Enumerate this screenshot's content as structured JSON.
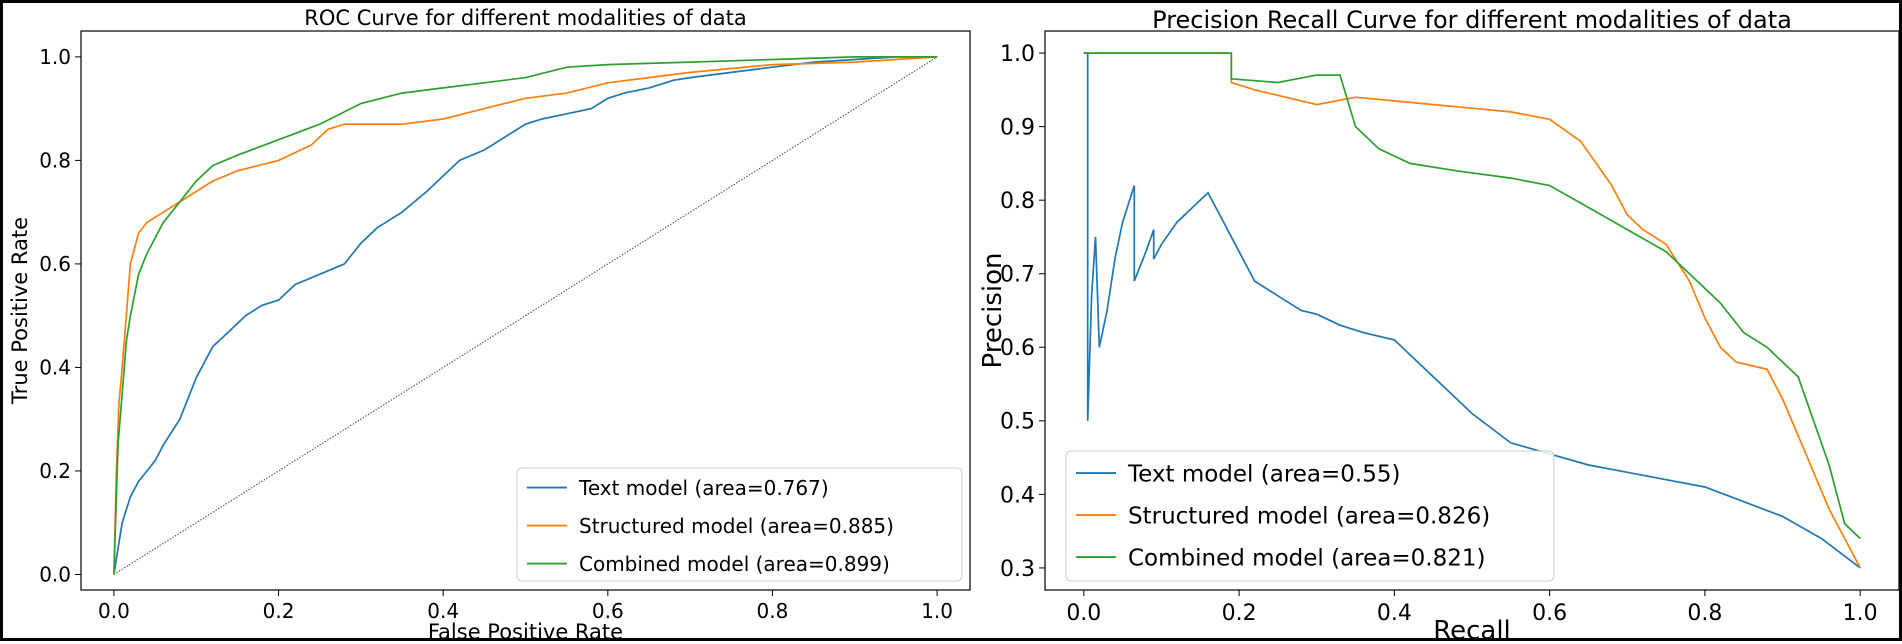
{
  "colors": {
    "text": "#1f77b4",
    "structured": "#ff7f0e",
    "combined": "#2ca02c",
    "diagonal": "#444444"
  },
  "chart_data": [
    {
      "type": "line",
      "title": "ROC Curve for different modalities of data",
      "xlabel": "False Positive Rate",
      "ylabel": "True Positive Rate",
      "xlim": [
        -0.04,
        1.04
      ],
      "ylim": [
        -0.03,
        1.05
      ],
      "xticks": [
        0.0,
        0.2,
        0.4,
        0.6,
        0.8,
        1.0
      ],
      "xtick_labels": [
        "0.0",
        "0.2",
        "0.4",
        "0.6",
        "0.8",
        "1.0"
      ],
      "yticks": [
        0.0,
        0.2,
        0.4,
        0.6,
        0.8,
        1.0
      ],
      "ytick_labels": [
        "0.0",
        "0.2",
        "0.4",
        "0.6",
        "0.8",
        "1.0"
      ],
      "grid": false,
      "legend_position": "lower-right",
      "reference_line": {
        "x": [
          0,
          1
        ],
        "y": [
          0,
          1
        ],
        "style": "dotted"
      },
      "series": [
        {
          "name": "Text model (area=0.767)",
          "color_key": "text",
          "x": [
            0.0,
            0.005,
            0.01,
            0.02,
            0.03,
            0.04,
            0.05,
            0.06,
            0.08,
            0.1,
            0.12,
            0.14,
            0.16,
            0.18,
            0.2,
            0.22,
            0.25,
            0.28,
            0.3,
            0.32,
            0.35,
            0.38,
            0.4,
            0.42,
            0.45,
            0.48,
            0.5,
            0.52,
            0.55,
            0.58,
            0.6,
            0.62,
            0.65,
            0.68,
            0.7,
            0.75,
            0.8,
            0.85,
            0.9,
            0.95,
            1.0
          ],
          "y": [
            0.0,
            0.05,
            0.1,
            0.15,
            0.18,
            0.2,
            0.22,
            0.25,
            0.3,
            0.38,
            0.44,
            0.47,
            0.5,
            0.52,
            0.53,
            0.56,
            0.58,
            0.6,
            0.64,
            0.67,
            0.7,
            0.74,
            0.77,
            0.8,
            0.82,
            0.85,
            0.87,
            0.88,
            0.89,
            0.9,
            0.92,
            0.93,
            0.94,
            0.955,
            0.96,
            0.97,
            0.98,
            0.99,
            0.995,
            1.0,
            1.0
          ]
        },
        {
          "name": "Structured model (area=0.885)",
          "color_key": "structured",
          "x": [
            0.0,
            0.003,
            0.006,
            0.01,
            0.015,
            0.02,
            0.025,
            0.03,
            0.04,
            0.05,
            0.06,
            0.08,
            0.1,
            0.12,
            0.15,
            0.2,
            0.24,
            0.26,
            0.28,
            0.3,
            0.35,
            0.4,
            0.45,
            0.5,
            0.55,
            0.6,
            0.65,
            0.7,
            0.8,
            0.9,
            0.95,
            1.0
          ],
          "y": [
            0.0,
            0.2,
            0.33,
            0.4,
            0.5,
            0.6,
            0.63,
            0.66,
            0.68,
            0.69,
            0.7,
            0.72,
            0.74,
            0.76,
            0.78,
            0.8,
            0.83,
            0.86,
            0.87,
            0.87,
            0.87,
            0.88,
            0.9,
            0.92,
            0.93,
            0.95,
            0.96,
            0.97,
            0.985,
            0.99,
            0.995,
            1.0
          ]
        },
        {
          "name": "Combined model (area=0.899)",
          "color_key": "combined",
          "x": [
            0.0,
            0.005,
            0.01,
            0.015,
            0.02,
            0.03,
            0.04,
            0.05,
            0.06,
            0.08,
            0.1,
            0.12,
            0.15,
            0.2,
            0.25,
            0.3,
            0.35,
            0.4,
            0.45,
            0.5,
            0.55,
            0.6,
            0.7,
            0.8,
            0.9,
            1.0
          ],
          "y": [
            0.0,
            0.25,
            0.35,
            0.45,
            0.5,
            0.58,
            0.62,
            0.65,
            0.68,
            0.72,
            0.76,
            0.79,
            0.81,
            0.84,
            0.87,
            0.91,
            0.93,
            0.94,
            0.95,
            0.96,
            0.98,
            0.985,
            0.99,
            0.995,
            1.0,
            1.0
          ]
        }
      ]
    },
    {
      "type": "line",
      "title": "Precision Recall Curve for different modalities of data",
      "xlabel": "Recall",
      "ylabel": "Precision",
      "xlim": [
        -0.05,
        1.05
      ],
      "ylim": [
        0.27,
        1.03
      ],
      "xticks": [
        0.0,
        0.2,
        0.4,
        0.6,
        0.8,
        1.0
      ],
      "xtick_labels": [
        "0.0",
        "0.2",
        "0.4",
        "0.6",
        "0.8",
        "1.0"
      ],
      "yticks": [
        0.3,
        0.4,
        0.5,
        0.6,
        0.7,
        0.8,
        0.9,
        1.0
      ],
      "ytick_labels": [
        "0.3",
        "0.4",
        "0.5",
        "0.6",
        "0.7",
        "0.8",
        "0.9",
        "1.0"
      ],
      "grid": false,
      "legend_position": "lower-left",
      "series": [
        {
          "name": "Text model (area=0.55)",
          "color_key": "text",
          "x": [
            0.0,
            0.005,
            0.005,
            0.01,
            0.015,
            0.02,
            0.03,
            0.04,
            0.05,
            0.065,
            0.065,
            0.08,
            0.09,
            0.09,
            0.1,
            0.12,
            0.14,
            0.16,
            0.17,
            0.18,
            0.2,
            0.22,
            0.25,
            0.28,
            0.3,
            0.33,
            0.36,
            0.4,
            0.42,
            0.45,
            0.48,
            0.5,
            0.55,
            0.6,
            0.65,
            0.7,
            0.75,
            0.8,
            0.85,
            0.9,
            0.95,
            1.0
          ],
          "y": [
            1.0,
            1.0,
            0.5,
            0.67,
            0.75,
            0.6,
            0.65,
            0.72,
            0.77,
            0.82,
            0.69,
            0.73,
            0.76,
            0.72,
            0.74,
            0.77,
            0.79,
            0.81,
            0.79,
            0.77,
            0.73,
            0.69,
            0.67,
            0.65,
            0.645,
            0.63,
            0.62,
            0.61,
            0.59,
            0.56,
            0.53,
            0.51,
            0.47,
            0.455,
            0.44,
            0.43,
            0.42,
            0.41,
            0.39,
            0.37,
            0.34,
            0.3
          ]
        },
        {
          "name": "Structured model (area=0.826)",
          "color_key": "structured",
          "x": [
            0.0,
            0.19,
            0.19,
            0.22,
            0.26,
            0.3,
            0.35,
            0.4,
            0.45,
            0.5,
            0.55,
            0.6,
            0.64,
            0.68,
            0.7,
            0.72,
            0.75,
            0.78,
            0.8,
            0.82,
            0.84,
            0.88,
            0.9,
            0.92,
            0.94,
            0.96,
            0.98,
            1.0
          ],
          "y": [
            1.0,
            1.0,
            0.96,
            0.95,
            0.94,
            0.93,
            0.94,
            0.935,
            0.93,
            0.925,
            0.92,
            0.91,
            0.88,
            0.82,
            0.78,
            0.76,
            0.74,
            0.69,
            0.64,
            0.6,
            0.58,
            0.57,
            0.53,
            0.48,
            0.43,
            0.38,
            0.34,
            0.3
          ]
        },
        {
          "name": "Combined model (area=0.821)",
          "color_key": "combined",
          "x": [
            0.0,
            0.19,
            0.19,
            0.25,
            0.3,
            0.33,
            0.35,
            0.38,
            0.42,
            0.48,
            0.55,
            0.6,
            0.65,
            0.7,
            0.75,
            0.8,
            0.82,
            0.85,
            0.88,
            0.9,
            0.92,
            0.94,
            0.96,
            0.98,
            1.0
          ],
          "y": [
            1.0,
            1.0,
            0.965,
            0.96,
            0.97,
            0.97,
            0.9,
            0.87,
            0.85,
            0.84,
            0.83,
            0.82,
            0.79,
            0.76,
            0.73,
            0.68,
            0.66,
            0.62,
            0.6,
            0.58,
            0.56,
            0.5,
            0.44,
            0.36,
            0.34
          ]
        }
      ]
    }
  ]
}
